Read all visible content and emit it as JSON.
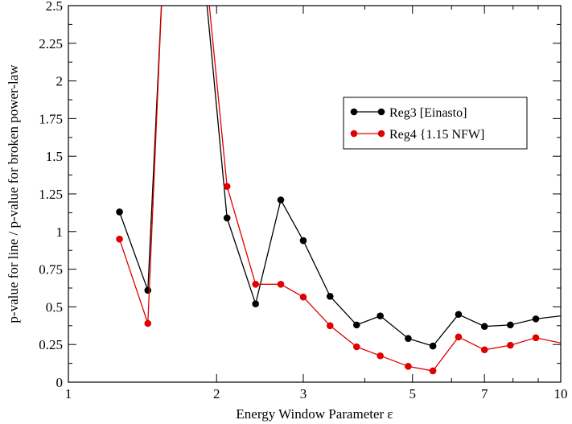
{
  "chart_data": {
    "type": "line",
    "xlabel": "Energy Window Parameter ε",
    "ylabel": "p-value for line / p-value for broken power-law",
    "xscale": "log",
    "xlim": [
      1,
      10
    ],
    "ylim": [
      0,
      2.5
    ],
    "xticks": [
      1,
      2,
      3,
      5,
      7,
      10
    ],
    "xtick_labels": [
      "1",
      "2",
      "3",
      "5",
      "7",
      "10"
    ],
    "yticks": [
      0,
      0.25,
      0.5,
      0.75,
      1,
      1.25,
      1.5,
      1.75,
      2,
      2.25,
      2.5
    ],
    "ytick_labels": [
      "0",
      "0.25",
      "0.5",
      "0.75",
      "1",
      "1.25",
      "1.5",
      "1.75",
      "2",
      "2.25",
      "2.5"
    ],
    "legend_position": "right, upper-middle",
    "series": [
      {
        "name": "Reg3 [Einasto]",
        "color": "#000000",
        "x": [
          1.27,
          1.45,
          1.55,
          1.9,
          2.1,
          2.4,
          2.7,
          3.0,
          3.4,
          3.85,
          4.3,
          4.9,
          5.5,
          6.2,
          7.0,
          7.9,
          8.9,
          10.0
        ],
        "y": [
          1.13,
          0.61,
          2.6,
          2.6,
          1.09,
          0.52,
          1.21,
          0.94,
          0.57,
          0.38,
          0.44,
          0.29,
          0.24,
          0.45,
          0.37,
          0.38,
          0.42,
          0.44
        ],
        "markers": [
          true,
          true,
          false,
          false,
          true,
          true,
          true,
          true,
          true,
          true,
          true,
          true,
          true,
          true,
          true,
          true,
          true,
          false
        ]
      },
      {
        "name": "Reg4 {1.15 NFW]",
        "color": "#e00000",
        "x": [
          1.27,
          1.45,
          1.55,
          1.92,
          2.1,
          2.4,
          2.7,
          3.0,
          3.4,
          3.85,
          4.3,
          4.9,
          5.5,
          6.2,
          7.0,
          7.9,
          8.9,
          10.0
        ],
        "y": [
          0.95,
          0.39,
          2.6,
          2.6,
          1.3,
          0.65,
          0.65,
          0.565,
          0.375,
          0.235,
          0.175,
          0.105,
          0.075,
          0.3,
          0.215,
          0.245,
          0.295,
          0.26
        ],
        "markers": [
          true,
          true,
          false,
          false,
          true,
          true,
          true,
          true,
          true,
          true,
          true,
          true,
          true,
          true,
          true,
          true,
          true,
          false
        ]
      }
    ]
  }
}
